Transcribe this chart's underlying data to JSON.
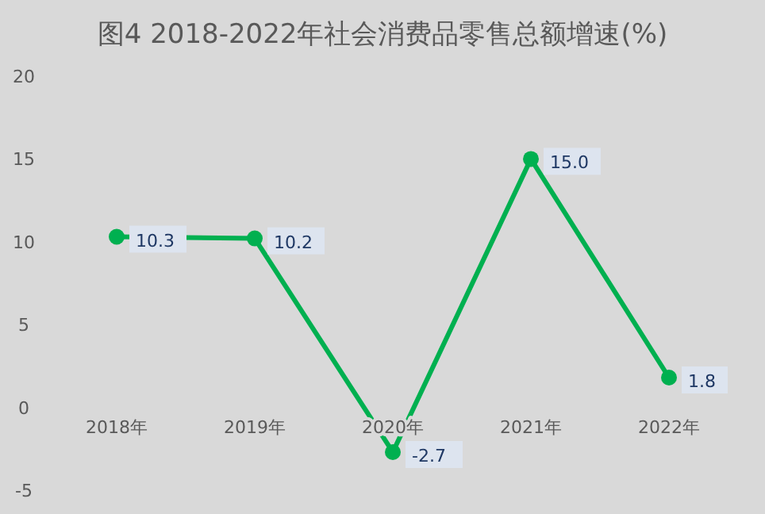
{
  "chart_data": {
    "type": "line",
    "title": "图4  2018-2022年社会消费品零售总额增速(%)",
    "categories": [
      "2018年",
      "2019年",
      "2020年",
      "2021年",
      "2022年"
    ],
    "values": [
      10.3,
      10.2,
      -2.7,
      15.0,
      1.8
    ],
    "value_labels": [
      "10.3",
      "10.2",
      "-2.7",
      "15.0",
      "1.8"
    ],
    "color": "#00b050",
    "marker": "circle",
    "ylim": [
      -5,
      20
    ],
    "yticks": [
      -5,
      0,
      5,
      10,
      15,
      20
    ]
  }
}
